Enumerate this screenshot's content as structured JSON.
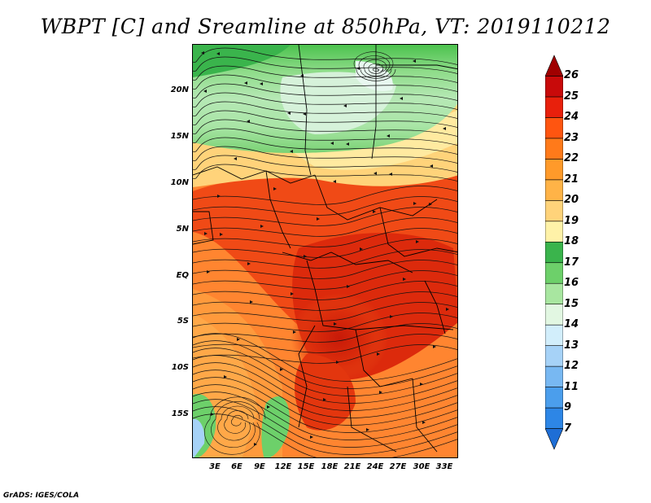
{
  "title": "WBPT [C] and Sreamline at 850hPa, VT: 2019110212",
  "credit": "GrADS: IGES/COLA",
  "map": {
    "lat_labels": [
      "20N",
      "15N",
      "10N",
      "5N",
      "EQ",
      "5S",
      "10S",
      "15S"
    ],
    "lon_labels": [
      "3E",
      "6E",
      "9E",
      "12E",
      "15E",
      "18E",
      "21E",
      "24E",
      "27E",
      "30E",
      "33E"
    ]
  },
  "colorbar": {
    "levels": [
      "7",
      "9",
      "11",
      "12",
      "13",
      "14",
      "15",
      "16",
      "17",
      "18",
      "19",
      "20",
      "21",
      "22",
      "23",
      "24",
      "25",
      "26"
    ],
    "colors": [
      "#1e6ed6",
      "#2d86e6",
      "#4b9eec",
      "#78b8f2",
      "#a6d2f7",
      "#d2eefb",
      "#e2f7e2",
      "#a8e6a0",
      "#6dd06a",
      "#3ab44c",
      "#fff2a8",
      "#ffd37a",
      "#ffb347",
      "#ff9a2a",
      "#ff7a1a",
      "#ff5510",
      "#e8200c",
      "#c80a0a",
      "#a00000"
    ]
  },
  "fields": {
    "description_colors": {
      "ocean_warm": "#ff8a30",
      "hot_core": "#d8240c",
      "sahara_green": "#7dd076",
      "sahara_pale": "#d6f2da"
    }
  }
}
